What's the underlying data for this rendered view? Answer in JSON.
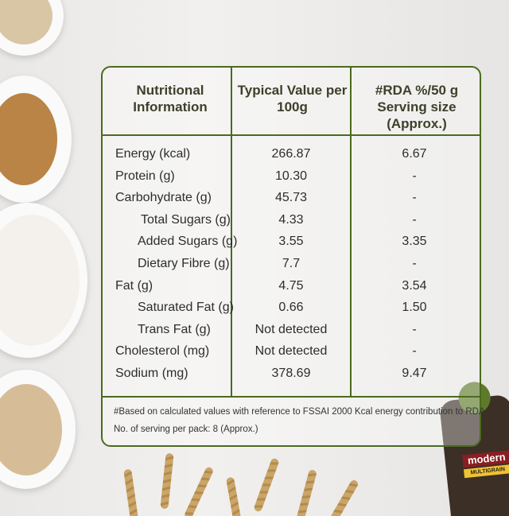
{
  "table": {
    "header": [
      "Nutritional Information",
      "Typical Value per 100g",
      "#RDA %/50 g Serving size (Approx.)"
    ],
    "rows": [
      [
        "Energy (kcal)",
        "266.87",
        "6.67"
      ],
      [
        "Protein (g)",
        "10.30",
        "-"
      ],
      [
        "Carbohydrate (g)",
        "45.73",
        "-"
      ],
      [
        "Total Sugars (g)",
        "4.33",
        "-"
      ],
      [
        "Added Sugars (g)",
        "3.55",
        "3.35"
      ],
      [
        "Dietary Fibre (g)",
        "7.7",
        "-"
      ],
      [
        "Fat (g)",
        "4.75",
        "3.54"
      ],
      [
        "Saturated Fat (g)",
        "0.66",
        "1.50"
      ],
      [
        "Trans Fat (g)",
        "Not detected",
        "-"
      ],
      [
        "Cholesterol (mg)",
        "Not detected",
        "-"
      ],
      [
        "Sodium (mg)",
        "378.69",
        "9.47"
      ]
    ],
    "footnotes": [
      "#Based on calculated values with reference to FSSAI 2000 Kcal energy contribution to RDA",
      "No. of serving per pack: 8 (Approx.)"
    ]
  },
  "product": {
    "brand": "modern",
    "variant": "MULTIGRAIN"
  }
}
